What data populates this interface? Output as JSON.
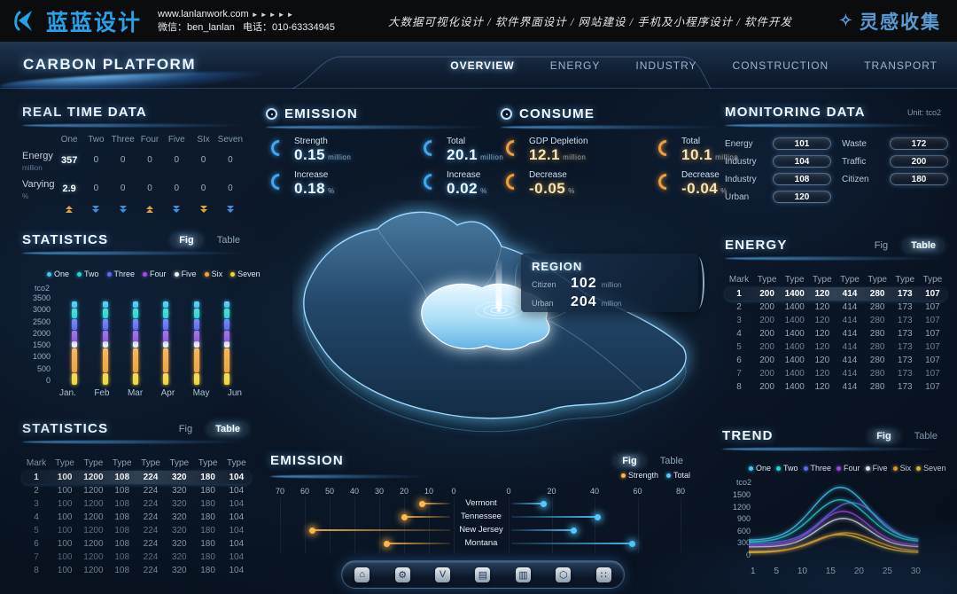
{
  "header": {
    "logo_text": "蓝蓝设计",
    "website": "www.lanlanwork.com",
    "arrows": "►►►►►",
    "wechat": "微信：ben_lanlan",
    "phone": "电话：010-63334945",
    "services": "大数据可视化设计 / 软件界面设计 / 网站建设 / 手机及小程序设计 / 软件开发",
    "collect": "灵感收集"
  },
  "nav": {
    "title": "CARBON PLATFORM",
    "tabs": [
      {
        "label": "OVERVIEW",
        "active": true
      },
      {
        "label": "ENERGY",
        "active": false
      },
      {
        "label": "INDUSTRY",
        "active": false
      },
      {
        "label": "CONSTRUCTION",
        "active": false
      },
      {
        "label": "TRANSPORT",
        "active": false
      }
    ]
  },
  "realtime": {
    "title": "REAL TIME DATA",
    "columns": [
      "One",
      "Two",
      "Three",
      "Four",
      "Five",
      "SIx",
      "Seven"
    ],
    "rows": [
      {
        "label": "Energy",
        "unit": "million",
        "values": [
          "357",
          "0",
          "0",
          "0",
          "0",
          "0",
          "0"
        ]
      },
      {
        "label": "Varying",
        "unit": "%",
        "values": [
          "2.9",
          "0",
          "0",
          "0",
          "0",
          "0",
          "0"
        ]
      }
    ],
    "trends": [
      {
        "dir": "up",
        "color": "#d9a43c"
      },
      {
        "dir": "down",
        "color": "#3f8fd9"
      },
      {
        "dir": "down",
        "color": "#3f8fd9"
      },
      {
        "dir": "up",
        "color": "#d9a43c"
      },
      {
        "dir": "down",
        "color": "#3f8fd9"
      },
      {
        "dir": "down",
        "color": "#d9a43c"
      },
      {
        "dir": "down",
        "color": "#3f8fd9"
      }
    ]
  },
  "legend7": [
    {
      "label": "One",
      "color": "#41c8f2"
    },
    {
      "label": "Two",
      "color": "#2ad4d4"
    },
    {
      "label": "Three",
      "color": "#5d6df0"
    },
    {
      "label": "Four",
      "color": "#a14fe0"
    },
    {
      "label": "Five",
      "color": "#f2f5f8"
    },
    {
      "label": "Six",
      "color": "#f2a43c"
    },
    {
      "label": "Seven",
      "color": "#f2d43c"
    }
  ],
  "stats_fig": {
    "title": "STATISTICS",
    "fig_label": "Fig",
    "table_label": "Table",
    "active": "Fig",
    "ylabel": "tco2",
    "yticks": [
      "3500",
      "3000",
      "2500",
      "2000",
      "1500",
      "1000",
      "500",
      "0"
    ],
    "months": [
      "Jan.",
      "Feb",
      "Mar",
      "Apr",
      "May",
      "Jun"
    ],
    "ymax": 3500,
    "segments": [
      {
        "color": "#f2d43c",
        "from": 0,
        "to": 470
      },
      {
        "color": "#f2a43c",
        "from": 500,
        "to": 1430
      },
      {
        "color": "#e9eef4",
        "from": 1460,
        "to": 1700
      },
      {
        "color": "#8e5ce0",
        "from": 1730,
        "to": 2140
      },
      {
        "color": "#5d6df0",
        "from": 2170,
        "to": 2580
      },
      {
        "color": "#2ad4d4",
        "from": 2610,
        "to": 3020
      },
      {
        "color": "#41c8f2",
        "from": 3050,
        "to": 3300
      }
    ]
  },
  "stats_table": {
    "title": "STATISTICS",
    "fig_label": "Fig",
    "table_label": "Table",
    "active": "Table",
    "headers": [
      "Mark",
      "Type",
      "Type",
      "Type",
      "Type",
      "Type",
      "Type",
      "Type"
    ],
    "marks": [
      "1",
      "2",
      "3",
      "4",
      "5",
      "6",
      "7",
      "8"
    ],
    "row_values": [
      "100",
      "1200",
      "108",
      "224",
      "320",
      "180",
      "104"
    ]
  },
  "energy_table": {
    "title": "ENERGY",
    "fig_label": "Fig",
    "table_label": "Table",
    "active": "Table",
    "headers": [
      "Mark",
      "Type",
      "Type",
      "Type",
      "Type",
      "Type",
      "Type",
      "Type"
    ],
    "marks": [
      "1",
      "2",
      "3",
      "4",
      "5",
      "6",
      "7",
      "8"
    ],
    "row_values": [
      "200",
      "1400",
      "120",
      "414",
      "280",
      "173",
      "107"
    ]
  },
  "emission_stats": {
    "title": "EMISSION",
    "items": [
      {
        "label": "Strength",
        "value": "0.15",
        "unit": "million"
      },
      {
        "label": "Total",
        "value": "20.1",
        "unit": "million"
      },
      {
        "label": "Increase",
        "value": "0.18",
        "unit": "%"
      },
      {
        "label": "Increase",
        "value": "0.02",
        "unit": "%"
      }
    ]
  },
  "consume_stats": {
    "title": "CONSUME",
    "items": [
      {
        "label": "GDP Depletion",
        "value": "12.1",
        "unit": "million"
      },
      {
        "label": "Total",
        "value": "10.1",
        "unit": "million"
      },
      {
        "label": "Decrease",
        "value": "-0.05",
        "unit": "%"
      },
      {
        "label": "Decrease",
        "value": "-0.04",
        "unit": "%"
      }
    ]
  },
  "region": {
    "title": "REGION",
    "rows": [
      {
        "label": "Citizen",
        "value": "102",
        "unit": "million"
      },
      {
        "label": "Urban",
        "value": "204",
        "unit": "million"
      }
    ]
  },
  "monitoring": {
    "title": "MONITORING DATA",
    "unit": "Unit: tco2",
    "left": [
      {
        "label": "Energy",
        "value": "101"
      },
      {
        "label": "Industry",
        "value": "104"
      },
      {
        "label": "Industry",
        "value": "108"
      },
      {
        "label": "Urban",
        "value": "120"
      }
    ],
    "right": [
      {
        "label": "Waste",
        "value": "172"
      },
      {
        "label": "Traffic",
        "value": "200"
      },
      {
        "label": "Citizen",
        "value": "180"
      }
    ]
  },
  "trend": {
    "title": "TREND",
    "fig_label": "Fig",
    "table_label": "Table",
    "active": "Fig",
    "ylabel": "tco2",
    "yticks": [
      "1500",
      "1200",
      "900",
      "600",
      "300",
      "0"
    ],
    "xticks": [
      "1",
      "5",
      "10",
      "15",
      "20",
      "25",
      "30"
    ],
    "ylim": [
      0,
      1800
    ],
    "series": [
      {
        "name": "One",
        "color": "#41c8f2",
        "base": 420,
        "peak": 1700,
        "center": 17,
        "sigma": 5
      },
      {
        "name": "Two",
        "color": "#2ad4d4",
        "base": 380,
        "peak": 1400,
        "center": 17,
        "sigma": 5
      },
      {
        "name": "Three",
        "color": "#5d6df0",
        "base": 350,
        "peak": 1330,
        "center": 19,
        "sigma": 5
      },
      {
        "name": "Four",
        "color": "#a14fe0",
        "base": 300,
        "peak": 1120,
        "center": 17.5,
        "sigma": 4.5
      },
      {
        "name": "Five",
        "color": "#dfe7ef",
        "base": 260,
        "peak": 950,
        "center": 17.5,
        "sigma": 4.5
      },
      {
        "name": "Six",
        "color": "#f2a43c",
        "base": 150,
        "peak": 600,
        "center": 18,
        "sigma": 5
      },
      {
        "name": "Seven",
        "color": "#f2d43c",
        "base": 120,
        "peak": 560,
        "center": 17,
        "sigma": 5
      }
    ]
  },
  "emission_chart": {
    "title": "EMISSION",
    "fig_label": "Fig",
    "table_label": "Table",
    "active": "Fig",
    "legend": [
      {
        "label": "Strength",
        "color": "#ffb84d"
      },
      {
        "label": "Total",
        "color": "#55c8ff"
      }
    ],
    "left_ticks": [
      "70",
      "60",
      "50",
      "40",
      "30",
      "20",
      "10",
      "0"
    ],
    "right_ticks": [
      "0",
      "20",
      "40",
      "60",
      "80"
    ],
    "rows": [
      {
        "label": "Vermont",
        "strength": 13,
        "total": 15
      },
      {
        "label": "Tennessee",
        "strength": 20,
        "total": 40
      },
      {
        "label": "New Jersey",
        "strength": 57,
        "total": 29
      },
      {
        "label": "Montana",
        "strength": 27,
        "total": 56
      }
    ]
  },
  "toolbar": {
    "icons": [
      {
        "name": "home-icon",
        "glyph": "⌂"
      },
      {
        "name": "gear-icon",
        "glyph": "⚙"
      },
      {
        "name": "v-badge-icon",
        "glyph": "V"
      },
      {
        "name": "building-icon",
        "glyph": "▤"
      },
      {
        "name": "bar-chart-icon",
        "glyph": "▥"
      },
      {
        "name": "nut-icon",
        "glyph": "⬡"
      },
      {
        "name": "apps-grid-icon",
        "glyph": "∷"
      }
    ]
  }
}
